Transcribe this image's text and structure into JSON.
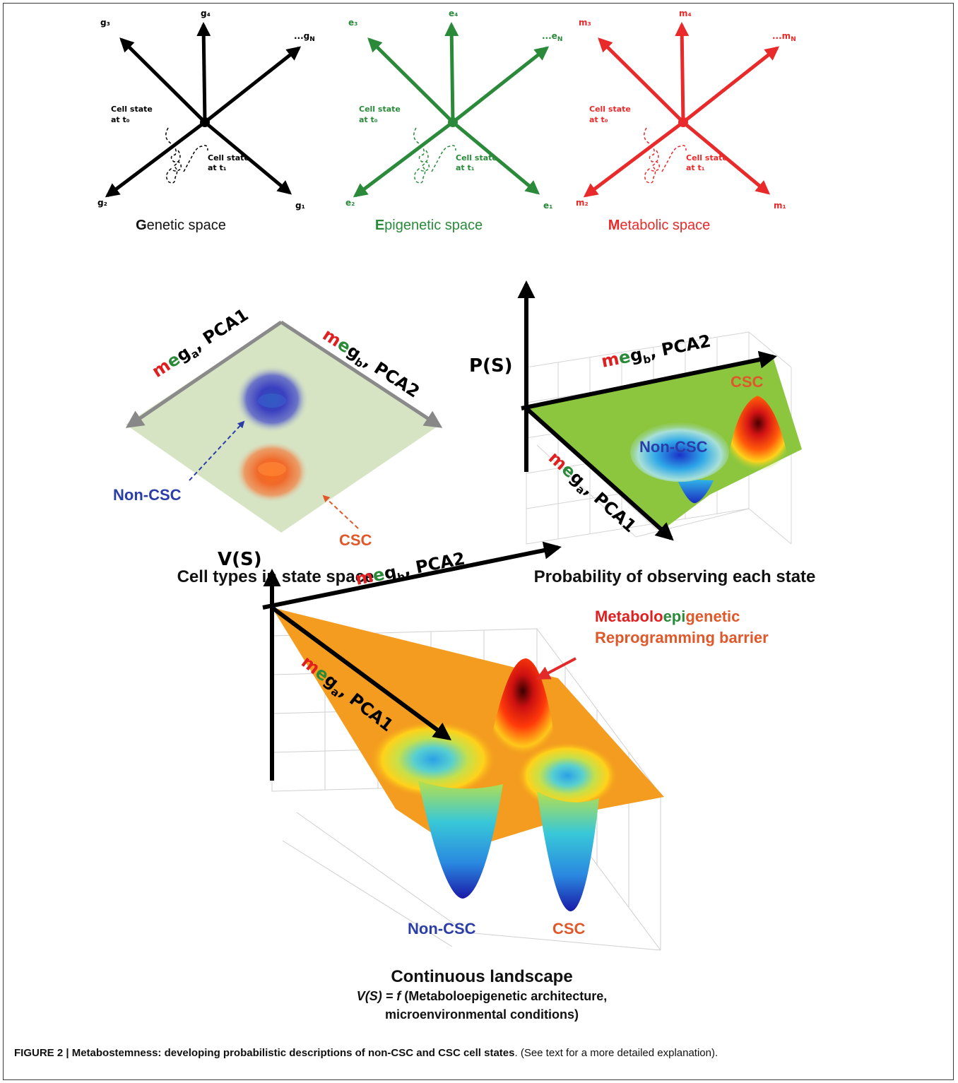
{
  "top_panels": [
    {
      "color": "#000000",
      "axes": [
        "g₃",
        "g₄",
        "...g",
        "g₂",
        "g₁"
      ],
      "axis_n_suffix": "N",
      "t0_line1": "Cell state",
      "t0_line2": "at t₀",
      "t1_line1": "Cell state",
      "t1_line2": "at t₁",
      "caption_initial": "G",
      "caption_rest": "enetic space"
    },
    {
      "color": "#2a8a3a",
      "axes": [
        "e₃",
        "e₄",
        "...e",
        "e₂",
        "e₁"
      ],
      "axis_n_suffix": "N",
      "t0_line1": "Cell state",
      "t0_line2": "at t₀",
      "t1_line1": "Cell state",
      "t1_line2": "at t₁",
      "caption_initial": "E",
      "caption_rest": "pigenetic space"
    },
    {
      "color": "#e82a2a",
      "axes": [
        "m₃",
        "m₄",
        "...m",
        "m₂",
        "m₁"
      ],
      "axis_n_suffix": "N",
      "t0_line1": "Cell state",
      "t0_line2": "at t₀",
      "t1_line1": "Cell state",
      "t1_line2": "at t₁",
      "caption_initial": "M",
      "caption_rest": "etabolic space"
    }
  ],
  "state_space": {
    "axis_a": {
      "m": "m",
      "e": "e",
      "g": "g",
      "sub": "a",
      "rest": ", PCA1"
    },
    "axis_b": {
      "m": "m",
      "e": "e",
      "g": "g",
      "sub": "b",
      "rest": ", PCA2"
    },
    "non_csc": "Non-CSC",
    "csc": "CSC",
    "caption": "Cell types in state space"
  },
  "probability": {
    "y_label": "P(S)",
    "axis_a": {
      "m": "m",
      "e": "e",
      "g": "g",
      "sub": "a",
      "rest": ", PCA1"
    },
    "axis_b": {
      "m": "m",
      "e": "e",
      "g": "g",
      "sub": "b",
      "rest": ", PCA2"
    },
    "non_csc": "Non-CSC",
    "csc": "CSC",
    "caption": "Probability of observing each state"
  },
  "landscape": {
    "y_label": "V(S)",
    "axis_a": {
      "m": "m",
      "e": "e",
      "g": "g",
      "sub": "a",
      "rest": ", PCA1"
    },
    "axis_b": {
      "m": "m",
      "e": "e",
      "g": "g",
      "sub": "b",
      "rest": ", PCA2"
    },
    "barrier_line1": {
      "p1": "Metabolo",
      "p2": "epi",
      "p3": "genetic"
    },
    "barrier_line2": "Reprogramming barrier",
    "non_csc": "Non-CSC",
    "csc": "CSC",
    "caption": "Continuous landscape",
    "formula_lhs": "V(S) = f",
    "formula_rhs": " (Metaboloepigenetic architecture,",
    "formula_line2": "microenvironmental conditions)"
  },
  "figure_caption": {
    "bold": "FIGURE 2 | Metabostemness: developing probabilistic descriptions of non-CSC and CSC cell states",
    "rest": ". (See text for a more detailed explanation)."
  },
  "colors": {
    "genetic": "#000000",
    "epigenetic": "#2a8a3a",
    "metabolic": "#e82a2a",
    "non_csc": "#2b3ea8",
    "csc": "#e0582a",
    "plane": "#d6e4c4",
    "surface_green": "#8cc63f",
    "surface_orange": "#f39c1f"
  }
}
